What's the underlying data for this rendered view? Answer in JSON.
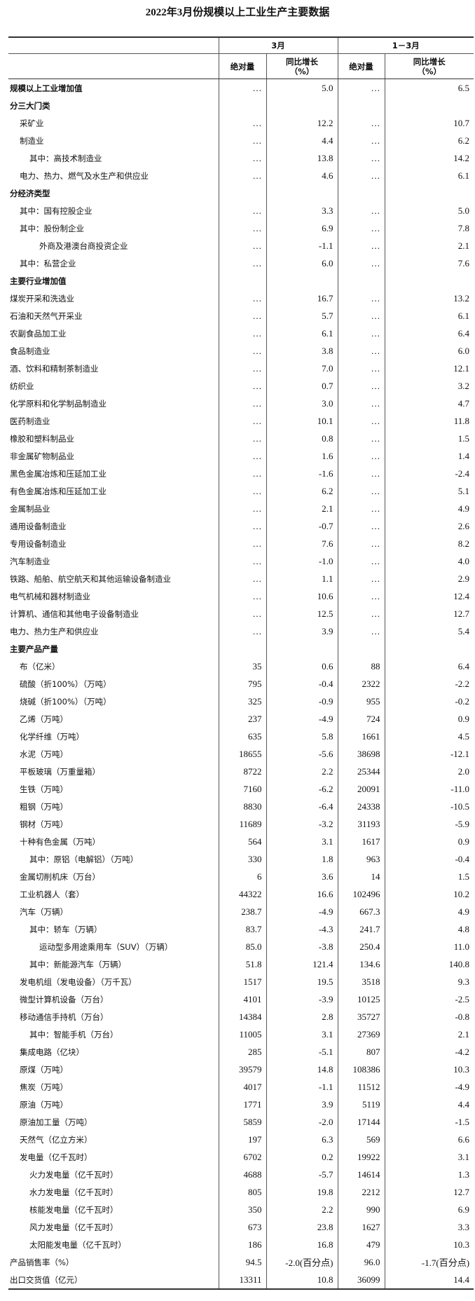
{
  "header": {
    "title": "2022年3月份规模以上工业生产主要数据"
  },
  "table": {
    "groups": [
      "3月",
      "1－3月"
    ],
    "columns": [
      "绝对量",
      "同比增长\n（%）",
      "绝对量",
      "同比增长\n（%）"
    ],
    "rows": [
      {
        "label": "规模以上工业增加值",
        "values": [
          "…",
          "5.0",
          "…",
          "6.5"
        ]
      },
      {
        "label": "分三大门类"
      },
      {
        "label": "采矿业",
        "values": [
          "…",
          "12.2",
          "…",
          "10.7"
        ]
      },
      {
        "label": "制造业",
        "values": [
          "…",
          "4.4",
          "…",
          "6.2"
        ]
      },
      {
        "label": "其中：高技术制造业",
        "values": [
          "…",
          "13.8",
          "…",
          "14.2"
        ]
      },
      {
        "label": "电力、热力、燃气及水生产和供应业",
        "values": [
          "…",
          "4.6",
          "…",
          "6.1"
        ]
      },
      {
        "label": "分经济类型"
      },
      {
        "label": "其中：国有控股企业",
        "values": [
          "…",
          "3.3",
          "…",
          "5.0"
        ]
      },
      {
        "label": "其中：股份制企业",
        "values": [
          "…",
          "6.9",
          "…",
          "7.8"
        ]
      },
      {
        "label": "外商及港澳台商投资企业",
        "values": [
          "…",
          "-1.1",
          "…",
          "2.1"
        ]
      },
      {
        "label": "其中：私营企业",
        "values": [
          "…",
          "6.0",
          "…",
          "7.6"
        ]
      },
      {
        "label": "主要行业增加值"
      },
      {
        "label": "煤炭开采和洗选业",
        "values": [
          "…",
          "16.7",
          "…",
          "13.2"
        ]
      },
      {
        "label": "石油和天然气开采业",
        "values": [
          "…",
          "5.7",
          "…",
          "6.1"
        ]
      },
      {
        "label": "农副食品加工业",
        "values": [
          "…",
          "6.1",
          "…",
          "6.4"
        ]
      },
      {
        "label": "食品制造业",
        "values": [
          "…",
          "3.8",
          "…",
          "6.0"
        ]
      },
      {
        "label": "酒、饮料和精制茶制造业",
        "values": [
          "…",
          "7.0",
          "…",
          "12.1"
        ]
      },
      {
        "label": "纺织业",
        "values": [
          "…",
          "0.7",
          "…",
          "3.2"
        ]
      },
      {
        "label": "化学原料和化学制品制造业",
        "values": [
          "…",
          "3.0",
          "…",
          "4.7"
        ]
      },
      {
        "label": "医药制造业",
        "values": [
          "…",
          "10.1",
          "…",
          "11.8"
        ]
      },
      {
        "label": "橡胶和塑料制品业",
        "values": [
          "…",
          "0.8",
          "…",
          "1.5"
        ]
      },
      {
        "label": "非金属矿物制品业",
        "values": [
          "…",
          "1.6",
          "…",
          "1.4"
        ]
      },
      {
        "label": "黑色金属冶炼和压延加工业",
        "values": [
          "…",
          "-1.6",
          "…",
          "-2.4"
        ]
      },
      {
        "label": "有色金属冶炼和压延加工业",
        "values": [
          "…",
          "6.2",
          "…",
          "5.1"
        ]
      },
      {
        "label": "金属制品业",
        "values": [
          "…",
          "2.1",
          "…",
          "4.9"
        ]
      },
      {
        "label": "通用设备制造业",
        "values": [
          "…",
          "-0.7",
          "…",
          "2.6"
        ]
      },
      {
        "label": "专用设备制造业",
        "values": [
          "…",
          "7.6",
          "…",
          "8.2"
        ]
      },
      {
        "label": "汽车制造业",
        "values": [
          "…",
          "-1.0",
          "…",
          "4.0"
        ]
      },
      {
        "label": "铁路、船舶、航空航天和其他运输设备制造业",
        "values": [
          "…",
          "1.1",
          "…",
          "2.9"
        ]
      },
      {
        "label": "电气机械和器材制造业",
        "values": [
          "…",
          "10.6",
          "…",
          "12.4"
        ]
      },
      {
        "label": "计算机、通信和其他电子设备制造业",
        "values": [
          "…",
          "12.5",
          "…",
          "12.7"
        ]
      },
      {
        "label": "电力、热力生产和供应业",
        "values": [
          "…",
          "3.9",
          "…",
          "5.4"
        ]
      },
      {
        "label": "主要产品产量"
      },
      {
        "label": "布（亿米）",
        "values": [
          "35",
          "0.6",
          "88",
          "6.4"
        ]
      },
      {
        "label": "硫酸（折100%）（万吨）",
        "values": [
          "795",
          "-0.4",
          "2322",
          "-2.2"
        ]
      },
      {
        "label": "烧碱（折100%）（万吨）",
        "values": [
          "325",
          "-0.9",
          "955",
          "-0.2"
        ]
      },
      {
        "label": "乙烯（万吨）",
        "values": [
          "237",
          "-4.9",
          "724",
          "0.9"
        ]
      },
      {
        "label": "化学纤维（万吨）",
        "values": [
          "635",
          "5.8",
          "1661",
          "4.5"
        ]
      },
      {
        "label": "水泥（万吨）",
        "values": [
          "18655",
          "-5.6",
          "38698",
          "-12.1"
        ]
      },
      {
        "label": "平板玻璃（万重量箱）",
        "values": [
          "8722",
          "2.2",
          "25344",
          "2.0"
        ]
      },
      {
        "label": "生铁（万吨）",
        "values": [
          "7160",
          "-6.2",
          "20091",
          "-11.0"
        ]
      },
      {
        "label": "粗钢（万吨）",
        "values": [
          "8830",
          "-6.4",
          "24338",
          "-10.5"
        ]
      },
      {
        "label": "钢材（万吨）",
        "values": [
          "11689",
          "-3.2",
          "31193",
          "-5.9"
        ]
      },
      {
        "label": "十种有色金属（万吨）",
        "values": [
          "564",
          "3.1",
          "1617",
          "0.9"
        ]
      },
      {
        "label": "其中：原铝（电解铝）（万吨）",
        "values": [
          "330",
          "1.8",
          "963",
          "-0.4"
        ]
      },
      {
        "label": "金属切削机床（万台）",
        "values": [
          "6",
          "3.6",
          "14",
          "1.5"
        ]
      },
      {
        "label": "工业机器人（套）",
        "values": [
          "44322",
          "16.6",
          "102496",
          "10.2"
        ]
      },
      {
        "label": "汽车（万辆）",
        "values": [
          "238.7",
          "-4.9",
          "667.3",
          "4.9"
        ]
      },
      {
        "label": "其中：轿车（万辆）",
        "values": [
          "83.7",
          "-4.3",
          "241.7",
          "4.8"
        ]
      },
      {
        "label": "运动型多用途乘用车（SUV）（万辆）",
        "values": [
          "85.0",
          "-3.8",
          "250.4",
          "11.0"
        ]
      },
      {
        "label": "其中：新能源汽车（万辆）",
        "values": [
          "51.8",
          "121.4",
          "134.6",
          "140.8"
        ]
      },
      {
        "label": "发电机组（发电设备）（万千瓦）",
        "values": [
          "1517",
          "19.5",
          "3518",
          "9.3"
        ]
      },
      {
        "label": "微型计算机设备（万台）",
        "values": [
          "4101",
          "-3.9",
          "10125",
          "-2.5"
        ]
      },
      {
        "label": "移动通信手持机（万台）",
        "values": [
          "14384",
          "2.8",
          "35727",
          "-0.8"
        ]
      },
      {
        "label": "其中：智能手机（万台）",
        "values": [
          "11005",
          "3.1",
          "27369",
          "2.1"
        ]
      },
      {
        "label": "集成电路（亿块）",
        "values": [
          "285",
          "-5.1",
          "807",
          "-4.2"
        ]
      },
      {
        "label": "原煤（万吨）",
        "values": [
          "39579",
          "14.8",
          "108386",
          "10.3"
        ]
      },
      {
        "label": "焦炭（万吨）",
        "values": [
          "4017",
          "-1.1",
          "11512",
          "-4.9"
        ]
      },
      {
        "label": "原油（万吨）",
        "values": [
          "1771",
          "3.9",
          "5119",
          "4.4"
        ]
      },
      {
        "label": "原油加工量（万吨）",
        "values": [
          "5859",
          "-2.0",
          "17144",
          "-1.5"
        ]
      },
      {
        "label": "天然气（亿立方米）",
        "values": [
          "197",
          "6.3",
          "569",
          "6.6"
        ]
      },
      {
        "label": "发电量（亿千瓦时）",
        "values": [
          "6702",
          "0.2",
          "19922",
          "3.1"
        ]
      },
      {
        "label": "火力发电量（亿千瓦时）",
        "values": [
          "4688",
          "-5.7",
          "14614",
          "1.3"
        ]
      },
      {
        "label": "水力发电量（亿千瓦时）",
        "values": [
          "805",
          "19.8",
          "2212",
          "12.7"
        ]
      },
      {
        "label": "核能发电量（亿千瓦时）",
        "values": [
          "350",
          "2.2",
          "990",
          "6.9"
        ]
      },
      {
        "label": "风力发电量（亿千瓦时）",
        "values": [
          "673",
          "23.8",
          "1627",
          "3.3"
        ]
      },
      {
        "label": "太阳能发电量（亿千瓦时）",
        "values": [
          "186",
          "16.8",
          "479",
          "10.3"
        ]
      },
      {
        "label": "产品销售率（%）",
        "values": [
          "94.5",
          "-2.0(百分点)",
          "96.0",
          "-1.7(百分点)"
        ]
      },
      {
        "label": "出口交货值（亿元）",
        "values": [
          "13311",
          "10.8",
          "36099",
          "14.4"
        ]
      }
    ]
  }
}
